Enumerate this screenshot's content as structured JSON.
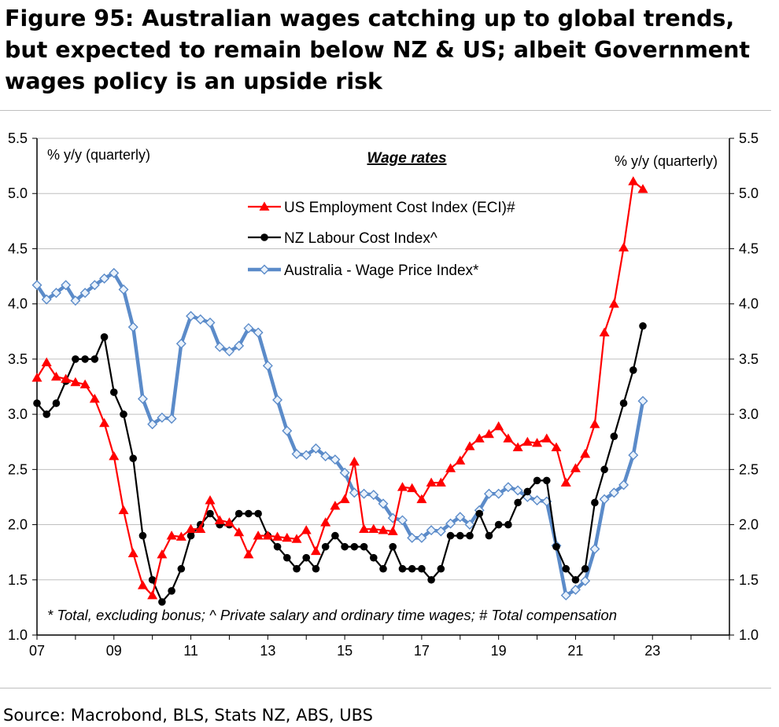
{
  "title": "Figure 95: Australian wages catching up to global trends, but expected to remain below NZ & US; albeit Government wages policy is an upside risk",
  "source": "Source: Macrobond, BLS, Stats NZ, ABS, UBS",
  "chart_data": {
    "type": "line",
    "panel_title": "Wage rates",
    "ylabel_left": "% y/y (quarterly)",
    "ylabel_right": "% y/y (quarterly)",
    "ylim": [
      1.0,
      5.5
    ],
    "yticks": [
      "1.0",
      "1.5",
      "2.0",
      "2.5",
      "3.0",
      "3.5",
      "4.0",
      "4.5",
      "5.0",
      "5.5"
    ],
    "xlim": [
      2007,
      2025
    ],
    "xticks": [
      {
        "label": "07",
        "x": 2007
      },
      {
        "label": "09",
        "x": 2009
      },
      {
        "label": "11",
        "x": 2011
      },
      {
        "label": "13",
        "x": 2013
      },
      {
        "label": "15",
        "x": 2015
      },
      {
        "label": "17",
        "x": 2017
      },
      {
        "label": "19",
        "x": 2019
      },
      {
        "label": "21",
        "x": 2021
      },
      {
        "label": "23",
        "x": 2023
      }
    ],
    "grid": "horizontal",
    "legend_position": "top-center",
    "footnote": "* Total, excluding bonus; ^ Private salary and ordinary time wages; # Total compensation",
    "series": [
      {
        "name": "US Employment Cost Index (ECI)#",
        "color": "#ff0000",
        "marker": "triangle",
        "x_start": 2007.0,
        "x_step": 0.25,
        "values": [
          3.33,
          3.47,
          3.34,
          3.32,
          3.29,
          3.27,
          3.14,
          2.92,
          2.62,
          2.13,
          1.74,
          1.45,
          1.36,
          1.73,
          1.9,
          1.89,
          1.96,
          1.96,
          2.22,
          2.04,
          2.02,
          1.93,
          1.73,
          1.9,
          1.9,
          1.89,
          1.88,
          1.87,
          1.95,
          1.76,
          2.02,
          2.17,
          2.23,
          2.57,
          1.96,
          1.96,
          1.95,
          1.94,
          2.34,
          2.33,
          2.23,
          2.38,
          2.38,
          2.51,
          2.58,
          2.71,
          2.78,
          2.82,
          2.89,
          2.78,
          2.7,
          2.75,
          2.74,
          2.78,
          2.7,
          2.38,
          2.51,
          2.64,
          2.91,
          3.74,
          4.0,
          4.51,
          5.11,
          5.04
        ]
      },
      {
        "name": "NZ Labour Cost Index^",
        "color": "#000000",
        "marker": "circle",
        "x_start": 2007.0,
        "x_step": 0.25,
        "values": [
          3.1,
          3.0,
          3.1,
          3.3,
          3.5,
          3.5,
          3.5,
          3.7,
          3.2,
          3.0,
          2.6,
          1.9,
          1.5,
          1.3,
          1.4,
          1.6,
          1.9,
          2.0,
          2.1,
          2.0,
          2.0,
          2.1,
          2.1,
          2.1,
          1.9,
          1.8,
          1.7,
          1.6,
          1.7,
          1.6,
          1.8,
          1.9,
          1.8,
          1.8,
          1.8,
          1.7,
          1.6,
          1.8,
          1.6,
          1.6,
          1.6,
          1.5,
          1.6,
          1.9,
          1.9,
          1.9,
          2.1,
          1.9,
          2.0,
          2.0,
          2.2,
          2.3,
          2.4,
          2.4,
          1.8,
          1.6,
          1.5,
          1.6,
          2.2,
          2.5,
          2.8,
          3.1,
          3.4,
          3.8
        ]
      },
      {
        "name": "Australia - Wage Price Index*",
        "color": "#5b8bc9",
        "marker": "diamond",
        "x_start": 2007.0,
        "x_step": 0.25,
        "values": [
          4.17,
          4.04,
          4.1,
          4.17,
          4.03,
          4.1,
          4.17,
          4.23,
          4.28,
          4.13,
          3.79,
          3.14,
          2.91,
          2.97,
          2.96,
          3.64,
          3.89,
          3.86,
          3.83,
          3.61,
          3.57,
          3.62,
          3.78,
          3.74,
          3.44,
          3.13,
          2.85,
          2.64,
          2.63,
          2.69,
          2.62,
          2.59,
          2.47,
          2.29,
          2.28,
          2.27,
          2.19,
          2.06,
          2.04,
          1.88,
          1.88,
          1.95,
          1.94,
          2.01,
          2.07,
          2.0,
          2.13,
          2.28,
          2.28,
          2.34,
          2.31,
          2.25,
          2.22,
          2.21,
          1.81,
          1.36,
          1.41,
          1.49,
          1.78,
          2.23,
          2.29,
          2.36,
          2.63,
          3.12
        ]
      }
    ]
  }
}
